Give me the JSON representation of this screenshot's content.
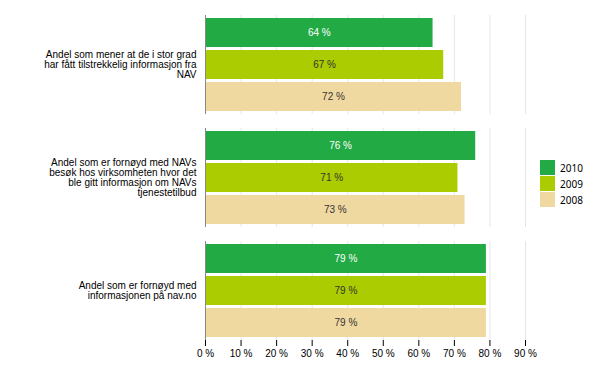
{
  "chart_data": {
    "type": "bar",
    "orientation": "horizontal",
    "categories": [
      "Andel som er fornøyd med\ninformasjonen på nav.no",
      "Andel som er fornøyd med NAVs\nbesøk hos virksomheten hvor det\nble gitt informasjon om NAVs\ntjenestetilbud",
      "Andel som mener at de i stor grad\nhar fått tilstrekkelig informasjon fra\nNAV"
    ],
    "series": [
      {
        "name": "2010",
        "color": "#22aa44",
        "values": [
          79,
          76,
          64
        ],
        "value_labels": [
          "79 %",
          "76 %",
          "64 %"
        ]
      },
      {
        "name": "2009",
        "color": "#aacc00",
        "values": [
          79,
          71,
          67
        ],
        "value_labels": [
          "79 %",
          "71 %",
          "67 %"
        ]
      },
      {
        "name": "2008",
        "color": "#f0d9a0",
        "values": [
          79,
          73,
          72
        ],
        "value_labels": [
          "79 %",
          "73 %",
          "72 %"
        ]
      }
    ],
    "xlim": [
      0,
      90
    ],
    "xticks": [
      {
        "value": 0,
        "label": "0 %"
      },
      {
        "value": 10,
        "label": "10 %"
      },
      {
        "value": 20,
        "label": "20 %"
      },
      {
        "value": 30,
        "label": "30 %"
      },
      {
        "value": 40,
        "label": "40 %"
      },
      {
        "value": 50,
        "label": "50 %"
      },
      {
        "value": 60,
        "label": "60 %"
      },
      {
        "value": 70,
        "label": "70 %"
      },
      {
        "value": 80,
        "label": "80 %"
      },
      {
        "value": 90,
        "label": "90 %"
      }
    ],
    "grid": true,
    "legend": "right",
    "data_labels": true
  }
}
